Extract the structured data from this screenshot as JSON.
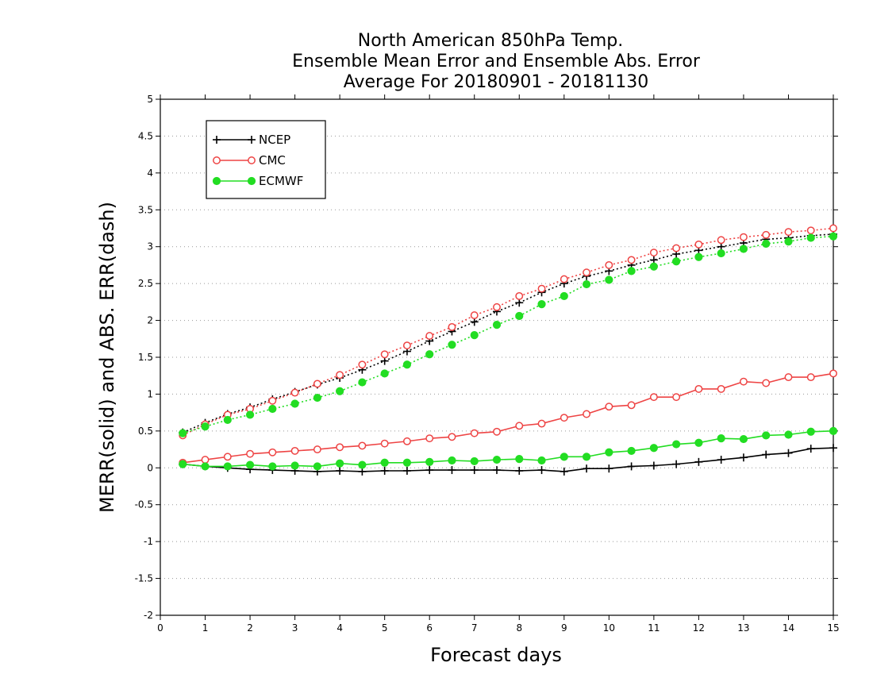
{
  "chart_data": {
    "type": "line",
    "title": [
      "North American 850hPa Temp.",
      "Ensemble Mean Error and Ensemble Abs. Error",
      "Average For 20180901 - 20181130"
    ],
    "xlabel": "Forecast days",
    "ylabel": "MERR(solid) and ABS. ERR(dash)",
    "xlim": [
      0,
      15
    ],
    "ylim": [
      -2,
      5
    ],
    "x_ticks": [
      0,
      1,
      2,
      3,
      4,
      5,
      6,
      7,
      8,
      9,
      10,
      11,
      12,
      13,
      14,
      15
    ],
    "y_ticks": [
      -2,
      -1.5,
      -1,
      -0.5,
      0,
      0.5,
      1,
      1.5,
      2,
      2.5,
      3,
      3.5,
      4,
      4.5,
      5
    ],
    "y_tick_labels": [
      "-2",
      "-1.5",
      "-1",
      "-0.5",
      "0",
      "0.5",
      "1",
      "1.5",
      "2",
      "2.5",
      "3",
      "3.5",
      "4",
      "4.5",
      "5"
    ],
    "grid": "horizontal dotted",
    "legend_position": "top-left",
    "x": [
      0.5,
      1,
      1.5,
      2,
      2.5,
      3,
      3.5,
      4,
      4.5,
      5,
      5.5,
      6,
      6.5,
      7,
      7.5,
      8,
      8.5,
      9,
      9.5,
      10,
      10.5,
      11,
      11.5,
      12,
      12.5,
      13,
      13.5,
      14,
      14.5,
      15
    ],
    "series": [
      {
        "name": "NCEP",
        "color": "#000000",
        "marker": "plus",
        "merr": [
          0.05,
          0.02,
          0.0,
          -0.02,
          -0.03,
          -0.04,
          -0.05,
          -0.04,
          -0.05,
          -0.04,
          -0.04,
          -0.03,
          -0.03,
          -0.03,
          -0.03,
          -0.04,
          -0.03,
          -0.05,
          -0.01,
          -0.01,
          0.02,
          0.03,
          0.05,
          0.08,
          0.11,
          0.14,
          0.18,
          0.2,
          0.26,
          0.27
        ],
        "abs_err": [
          0.48,
          0.61,
          0.73,
          0.82,
          0.93,
          1.03,
          1.13,
          1.22,
          1.33,
          1.45,
          1.58,
          1.72,
          1.85,
          1.98,
          2.12,
          2.24,
          2.38,
          2.5,
          2.6,
          2.67,
          2.75,
          2.82,
          2.9,
          2.95,
          3.0,
          3.05,
          3.1,
          3.12,
          3.15,
          3.17
        ]
      },
      {
        "name": "CMC",
        "color": "#ee4444",
        "marker": "open-circle",
        "merr": [
          0.07,
          0.11,
          0.15,
          0.19,
          0.21,
          0.23,
          0.25,
          0.28,
          0.3,
          0.33,
          0.36,
          0.4,
          0.42,
          0.47,
          0.49,
          0.57,
          0.6,
          0.68,
          0.73,
          0.83,
          0.85,
          0.96,
          0.96,
          1.07,
          1.07,
          1.17,
          1.15,
          1.23,
          1.23,
          1.28
        ],
        "abs_err": [
          0.44,
          0.59,
          0.72,
          0.8,
          0.91,
          1.02,
          1.14,
          1.26,
          1.4,
          1.54,
          1.66,
          1.79,
          1.91,
          2.07,
          2.18,
          2.33,
          2.43,
          2.56,
          2.65,
          2.75,
          2.82,
          2.92,
          2.98,
          3.03,
          3.09,
          3.13,
          3.16,
          3.2,
          3.22,
          3.25
        ]
      },
      {
        "name": "ECMWF",
        "color": "#22dd22",
        "marker": "filled-circle",
        "merr": [
          0.05,
          0.02,
          0.02,
          0.04,
          0.02,
          0.03,
          0.02,
          0.06,
          0.04,
          0.07,
          0.07,
          0.08,
          0.1,
          0.09,
          0.11,
          0.12,
          0.1,
          0.15,
          0.15,
          0.21,
          0.23,
          0.27,
          0.32,
          0.34,
          0.4,
          0.39,
          0.44,
          0.45,
          0.49,
          0.5
        ],
        "abs_err": [
          0.47,
          0.56,
          0.65,
          0.72,
          0.8,
          0.87,
          0.95,
          1.04,
          1.16,
          1.28,
          1.4,
          1.54,
          1.67,
          1.8,
          1.94,
          2.06,
          2.22,
          2.33,
          2.49,
          2.55,
          2.67,
          2.73,
          2.8,
          2.86,
          2.91,
          2.97,
          3.04,
          3.07,
          3.12,
          3.14
        ]
      }
    ]
  }
}
